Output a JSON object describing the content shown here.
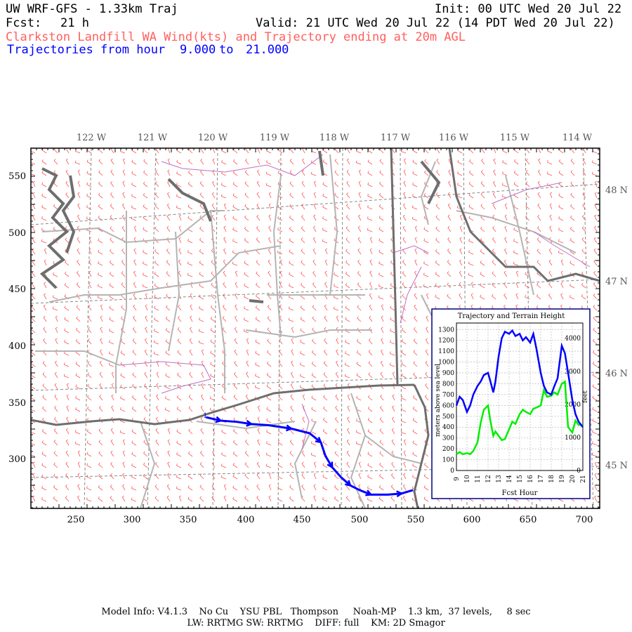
{
  "header": {
    "model_title": "UW WRF-GFS - 1.33km Traj",
    "init": "Init: 00 UTC Wed 20 Jul 22",
    "fcst_label": "Fcst:",
    "fcst_value": "21 h",
    "valid": "Valid: 21 UTC Wed 20 Jul 22 (14 PDT Wed 20 Jul 22)",
    "subtitle": "Clarkston Landfill WA Wind(kts) and Trajectory ending at 20m AGL",
    "traj_prefix": "Trajectories from hour",
    "traj_start": "9.000",
    "traj_to": "to",
    "traj_end": "21.000"
  },
  "map": {
    "lon_labels": [
      "122 W",
      "121 W",
      "120 W",
      "119 W",
      "118 W",
      "117 W",
      "116 W",
      "115 W",
      "114 W"
    ],
    "lat_labels": [
      "48 N",
      "47 N",
      "46 N",
      "45 N"
    ],
    "x_ticks": [
      "250",
      "300",
      "350",
      "400",
      "450",
      "500",
      "550",
      "600",
      "650",
      "700"
    ],
    "y_ticks": [
      "550",
      "500",
      "450",
      "400",
      "350",
      "300"
    ],
    "barb_color": "#ff5050",
    "trajectory_color": "#0000ff",
    "trajectory_start_marker": "1",
    "trajectory_points": [
      [
        365,
        340
      ],
      [
        378,
        337
      ],
      [
        392,
        336
      ],
      [
        405,
        334
      ],
      [
        420,
        333
      ],
      [
        440,
        330
      ],
      [
        456,
        326
      ],
      [
        466,
        318
      ],
      [
        470,
        306
      ],
      [
        476,
        296
      ],
      [
        484,
        287
      ],
      [
        492,
        280
      ],
      [
        500,
        276
      ],
      [
        510,
        272
      ],
      [
        525,
        272
      ],
      [
        537,
        273
      ],
      [
        547,
        276
      ]
    ]
  },
  "inset": {
    "title": "Trajectory and Terrain Height",
    "xlabel": "Fcst Hour",
    "ylabel_left": "meters above sea level",
    "ylabel_right": "feet",
    "x_ticks": [
      "9",
      "10",
      "11",
      "12",
      "13",
      "14",
      "15",
      "16",
      "17",
      "18",
      "19",
      "20",
      "21"
    ],
    "y_ticks_m": [
      "0",
      "100",
      "200",
      "300",
      "400",
      "500",
      "600",
      "700",
      "800",
      "900",
      "1000",
      "1100",
      "1200",
      "1300"
    ],
    "y_ticks_ft": [
      "0",
      "1000",
      "2000",
      "3000",
      "4000"
    ]
  },
  "chart_data": {
    "type": "line",
    "title": "Trajectory and Terrain Height",
    "xlabel": "Fcst Hour",
    "ylabel": "meters above sea level",
    "xlim": [
      9,
      21
    ],
    "ylim": [
      0,
      1360
    ],
    "grid": true,
    "series": [
      {
        "color": "#0000ff",
        "x": [
          9,
          9.3,
          9.6,
          10,
          10.3,
          10.6,
          11,
          11.3,
          11.6,
          12,
          12.2,
          12.5,
          12.7,
          13,
          13.3,
          13.6,
          14,
          14.3,
          14.6,
          15,
          15.3,
          15.6,
          16,
          16.3,
          16.6,
          17,
          17.3,
          17.6,
          18,
          18.3,
          18.6,
          19,
          19.3,
          19.6,
          20,
          20.3,
          20.6,
          21
        ],
        "values": [
          600,
          680,
          650,
          540,
          600,
          700,
          780,
          820,
          880,
          900,
          830,
          720,
          820,
          1050,
          1220,
          1280,
          1260,
          1290,
          1240,
          1260,
          1200,
          1230,
          1180,
          1260,
          1120,
          900,
          780,
          720,
          700,
          780,
          850,
          1150,
          1080,
          900,
          650,
          520,
          450,
          400
        ]
      },
      {
        "color": "#00ee00",
        "x": [
          9,
          9.3,
          9.6,
          10,
          10.3,
          10.6,
          11,
          11.3,
          11.6,
          12,
          12.2,
          12.5,
          12.7,
          13,
          13.3,
          13.6,
          14,
          14.3,
          14.6,
          15,
          15.3,
          15.6,
          16,
          16.3,
          16.6,
          17,
          17.3,
          17.6,
          18,
          18.3,
          18.6,
          19,
          19.3,
          19.6,
          20,
          20.3,
          20.6,
          21
        ],
        "values": [
          150,
          170,
          150,
          160,
          150,
          180,
          260,
          440,
          560,
          600,
          470,
          320,
          360,
          320,
          280,
          290,
          380,
          450,
          430,
          520,
          560,
          540,
          520,
          570,
          580,
          600,
          740,
          680,
          690,
          720,
          700,
          800,
          820,
          400,
          350,
          460,
          420,
          420
        ]
      }
    ]
  },
  "footer": {
    "line1": "Model Info: V4.1.3    No Cu    YSU PBL   Thompson     Noah-MP    1.3 km,  37 levels,     8 sec",
    "line2": "LW: RRTMG SW: RRTMG    DIFF: full    KM: 2D Smagor"
  }
}
